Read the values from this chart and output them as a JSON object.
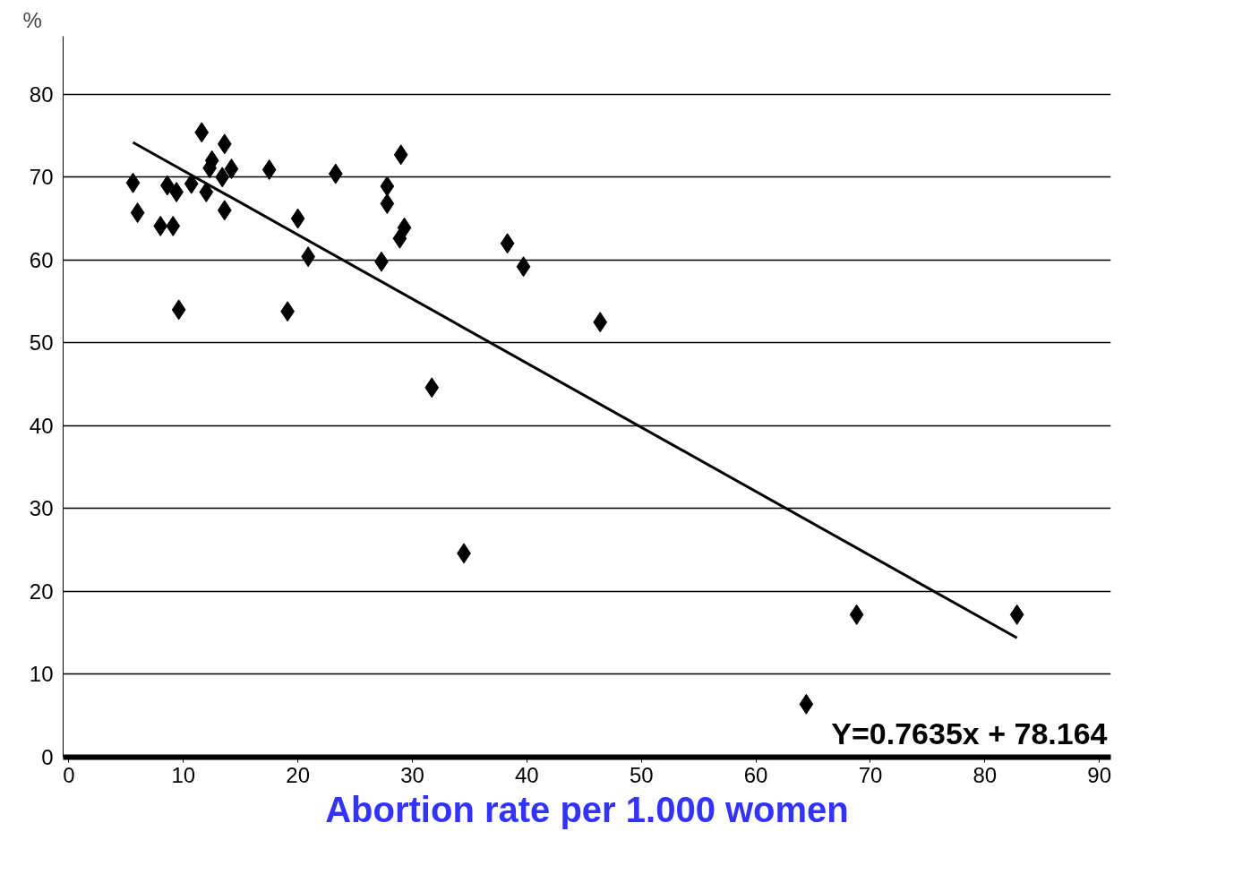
{
  "chart_data": {
    "type": "scatter",
    "xlabel": "Abortion rate per 1.000 women",
    "ylabel": "%",
    "xlim": [
      -0.5,
      91
    ],
    "ylim": [
      0,
      87
    ],
    "xticks": [
      0,
      10,
      20,
      30,
      40,
      50,
      60,
      70,
      80,
      90
    ],
    "yticks": [
      0,
      10,
      20,
      30,
      40,
      50,
      60,
      70,
      80
    ],
    "grid": "y",
    "series": [
      {
        "color": "#000000",
        "marker": "diamond",
        "x": [
          5.6,
          6.0,
          8.0,
          8.6,
          9.1,
          9.4,
          9.6,
          10.7,
          11.6,
          12.0,
          12.3,
          12.5,
          13.6,
          13.4,
          13.6,
          14.2,
          17.5,
          19.1,
          20.0,
          20.9,
          23.3,
          27.3,
          27.8,
          27.8,
          28.9,
          29.0,
          29.3,
          31.7,
          34.5,
          38.3,
          39.7,
          46.4,
          64.4,
          68.8,
          82.8
        ],
        "values": [
          69.3,
          65.7,
          64.1,
          69.0,
          64.1,
          68.2,
          54.0,
          69.2,
          75.4,
          68.2,
          71.1,
          72.0,
          74.0,
          70.0,
          66.0,
          71.0,
          70.9,
          53.8,
          65.0,
          60.4,
          70.4,
          59.8,
          68.9,
          66.8,
          62.6,
          72.7,
          63.9,
          44.6,
          24.6,
          62.0,
          59.2,
          52.5,
          6.4,
          17.2,
          17.2
        ]
      },
      {
        "type": "line",
        "color": "#000000",
        "x": [
          5.6,
          82.8
        ],
        "values": [
          74.2,
          14.4
        ]
      }
    ],
    "annotations": [
      "Y=0.7635x + 78.164"
    ]
  }
}
